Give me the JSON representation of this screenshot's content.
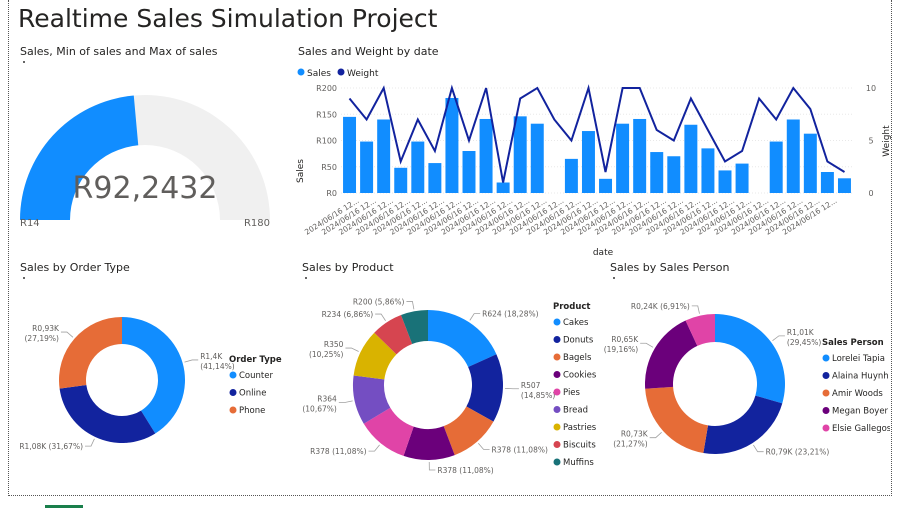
{
  "page": {
    "title": "Realtime Sales Simulation Project"
  },
  "gauge": {
    "title": "Sales, Min of sales and Max of sales",
    "value_label": "R92,2432",
    "min_label": "R14",
    "max_label": "R180",
    "min": 14,
    "max": 180,
    "value": 92.2432,
    "fill_color": "#118DFF",
    "track_color": "#F0F0F0"
  },
  "combo": {
    "title": "Sales and Weight by date",
    "legend": [
      {
        "label": "Sales",
        "color": "#118DFF"
      },
      {
        "label": "Weight",
        "color": "#12239E"
      }
    ],
    "xlabel": "date",
    "ylabel_left": "Sales",
    "ylabel_right": "Weight",
    "y_ticks": [
      "R0",
      "R50",
      "R100",
      "R150",
      "R200"
    ],
    "y2_ticks": [
      "0",
      "5",
      "10"
    ],
    "x_tick_label": "2024/06/16 12...",
    "chart_data": {
      "type": "bar",
      "ylim": [
        0,
        200
      ],
      "y2lim": [
        0,
        10
      ],
      "sales": [
        145,
        98,
        140,
        48,
        98,
        57,
        181,
        80,
        141,
        20,
        146,
        132,
        0,
        65,
        118,
        27,
        132,
        141,
        78,
        70,
        130,
        85,
        43,
        56,
        0,
        98,
        140,
        113,
        40,
        28
      ],
      "weight": [
        9,
        7,
        10,
        3,
        7,
        4,
        10,
        5,
        10,
        1,
        9,
        10,
        7,
        5,
        10,
        2,
        10,
        10,
        6,
        5,
        9,
        6,
        3,
        4,
        9,
        7,
        10,
        8,
        3,
        2
      ]
    }
  },
  "order_type": {
    "title": "Sales by Order Type",
    "legend_title": "Order Type",
    "chart_data": {
      "type": "pie",
      "slices": [
        {
          "name": "Counter",
          "value": 41.14,
          "color": "#118DFF",
          "label1": "R1,4K",
          "label2": "(41,14%)"
        },
        {
          "name": "Online",
          "value": 31.67,
          "color": "#12239E",
          "label1": "R1,08K (31,67%)",
          "label2": ""
        },
        {
          "name": "Phone",
          "value": 27.19,
          "color": "#E66C37",
          "label1": "R0,93K",
          "label2": "(27,19%)"
        }
      ]
    }
  },
  "product": {
    "title": "Sales by Product",
    "legend_title": "Product",
    "chart_data": {
      "type": "pie",
      "slices": [
        {
          "name": "Cakes",
          "value": 18.28,
          "color": "#118DFF",
          "label1": "R624 (18,28%)",
          "label2": ""
        },
        {
          "name": "Donuts",
          "value": 14.85,
          "color": "#12239E",
          "label1": "R507",
          "label2": "(14,85%)"
        },
        {
          "name": "Bagels",
          "value": 11.08,
          "color": "#E66C37",
          "label1": "R378 (11,08%)",
          "label2": ""
        },
        {
          "name": "Cookies",
          "value": 11.08,
          "color": "#6B007B",
          "label1": "R378 (11,08%)",
          "label2": ""
        },
        {
          "name": "Pies",
          "value": 11.08,
          "color": "#E044A7",
          "label1": "R378 (11,08%)",
          "label2": ""
        },
        {
          "name": "Bread",
          "value": 10.67,
          "color": "#744EC2",
          "label1": "R364",
          "label2": "(10,67%)"
        },
        {
          "name": "Pastries",
          "value": 10.25,
          "color": "#D9B300",
          "label1": "R350",
          "label2": "(10,25%)"
        },
        {
          "name": "Biscuits",
          "value": 6.86,
          "color": "#D64550",
          "label1": "R234 (6,86%)",
          "label2": ""
        },
        {
          "name": "Muffins",
          "value": 5.86,
          "color": "#197278",
          "label1": "R200 (5,86%)",
          "label2": ""
        }
      ]
    }
  },
  "sales_person": {
    "title": "Sales by Sales Person",
    "legend_title": "Sales Person",
    "chart_data": {
      "type": "pie",
      "slices": [
        {
          "name": "Lorelei Tapia",
          "value": 29.45,
          "color": "#118DFF",
          "label1": "R1,01K",
          "label2": "(29,45%)"
        },
        {
          "name": "Alaina Huynh",
          "value": 23.21,
          "color": "#12239E",
          "label1": "R0,79K (23,21%)",
          "label2": ""
        },
        {
          "name": "Amir Woods",
          "value": 21.27,
          "color": "#E66C37",
          "label1": "R0,73K",
          "label2": "(21,27%)"
        },
        {
          "name": "Megan Boyer",
          "value": 19.16,
          "color": "#6B007B",
          "label1": "R0,65K",
          "label2": "(19,16%)"
        },
        {
          "name": "Elsie Gallegos",
          "value": 6.91,
          "color": "#E044A7",
          "label1": "R0,24K (6,91%)",
          "label2": ""
        }
      ]
    }
  }
}
